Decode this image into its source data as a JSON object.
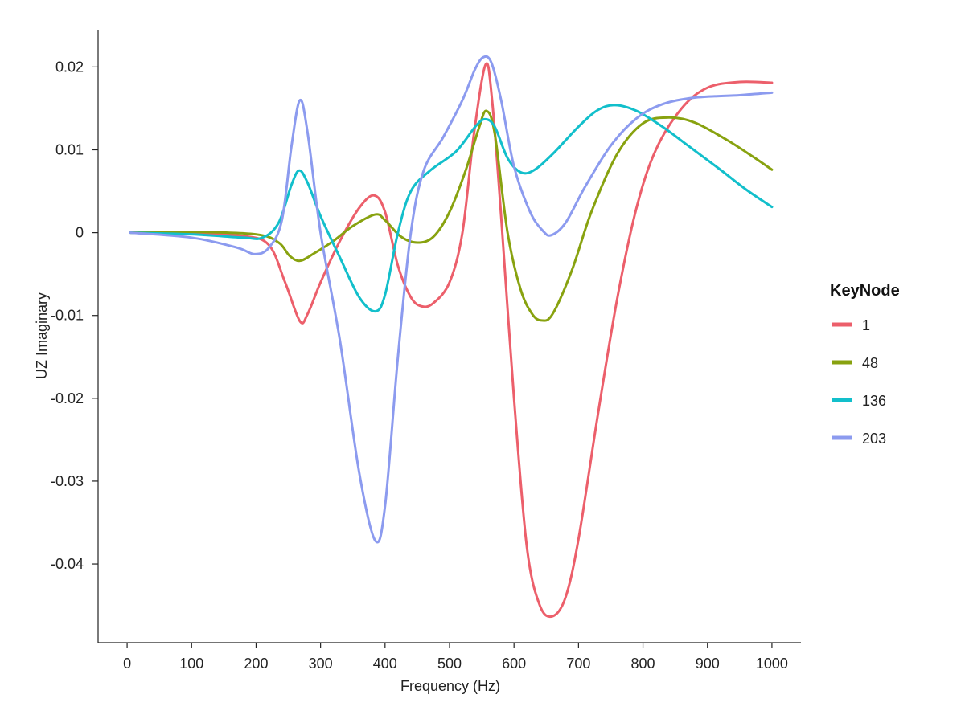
{
  "chart_data": {
    "type": "line",
    "title": "",
    "xlabel": "Frequency (Hz)",
    "ylabel": "UZ Imaginary",
    "xlim": [
      -45,
      1045
    ],
    "ylim": [
      -0.0495,
      0.0245
    ],
    "xticks": [
      0,
      100,
      200,
      300,
      400,
      500,
      600,
      700,
      800,
      900,
      1000
    ],
    "yticks": [
      -0.04,
      -0.03,
      -0.02,
      -0.01,
      0,
      0.01,
      0.02
    ],
    "ytick_labels": [
      "-0.04",
      "-0.03",
      "-0.02",
      "-0.01",
      "0",
      "0.01",
      "0.02"
    ],
    "grid": false,
    "legend": {
      "title": "KeyNode",
      "position": "right"
    },
    "series": [
      {
        "name": "1",
        "color": "#EC5F6B",
        "points": [
          [
            5,
            0
          ],
          [
            100,
            -0.0001
          ],
          [
            180,
            -0.0004
          ],
          [
            220,
            -0.0015
          ],
          [
            245,
            -0.006
          ],
          [
            268,
            -0.0107
          ],
          [
            280,
            -0.0098
          ],
          [
            300,
            -0.006
          ],
          [
            330,
            -0.001
          ],
          [
            360,
            0.003
          ],
          [
            383,
            0.0045
          ],
          [
            400,
            0.0025
          ],
          [
            420,
            -0.004
          ],
          [
            440,
            -0.0078
          ],
          [
            457,
            -0.0089
          ],
          [
            475,
            -0.0085
          ],
          [
            500,
            -0.006
          ],
          [
            520,
            0.0
          ],
          [
            538,
            0.012
          ],
          [
            556,
            0.0203
          ],
          [
            566,
            0.016
          ],
          [
            580,
            0.002
          ],
          [
            600,
            -0.02
          ],
          [
            620,
            -0.038
          ],
          [
            640,
            -0.045
          ],
          [
            660,
            -0.0463
          ],
          [
            680,
            -0.044
          ],
          [
            700,
            -0.037
          ],
          [
            730,
            -0.022
          ],
          [
            760,
            -0.008
          ],
          [
            790,
            0.003
          ],
          [
            820,
            0.01
          ],
          [
            860,
            0.015
          ],
          [
            900,
            0.0175
          ],
          [
            950,
            0.0182
          ],
          [
            1000,
            0.0181
          ]
        ]
      },
      {
        "name": "48",
        "color": "#88A20F",
        "points": [
          [
            5,
            0
          ],
          [
            100,
            0.0001
          ],
          [
            200,
            -0.0002
          ],
          [
            235,
            -0.0012
          ],
          [
            252,
            -0.0028
          ],
          [
            268,
            -0.0034
          ],
          [
            290,
            -0.0025
          ],
          [
            320,
            -0.001
          ],
          [
            350,
            0.0008
          ],
          [
            385,
            0.0022
          ],
          [
            400,
            0.0015
          ],
          [
            425,
            -0.0005
          ],
          [
            450,
            -0.0012
          ],
          [
            475,
            -0.0005
          ],
          [
            500,
            0.0025
          ],
          [
            525,
            0.0075
          ],
          [
            545,
            0.0125
          ],
          [
            557,
            0.0147
          ],
          [
            570,
            0.012
          ],
          [
            590,
            0.0
          ],
          [
            610,
            -0.0068
          ],
          [
            628,
            -0.0098
          ],
          [
            643,
            -0.0106
          ],
          [
            660,
            -0.0098
          ],
          [
            690,
            -0.0045
          ],
          [
            720,
            0.0025
          ],
          [
            760,
            0.0095
          ],
          [
            800,
            0.0132
          ],
          [
            840,
            0.0139
          ],
          [
            880,
            0.0133
          ],
          [
            930,
            0.0112
          ],
          [
            970,
            0.0092
          ],
          [
            1000,
            0.0076
          ]
        ]
      },
      {
        "name": "136",
        "color": "#12BFCB",
        "points": [
          [
            5,
            0
          ],
          [
            100,
            -0.0002
          ],
          [
            180,
            -0.0006
          ],
          [
            210,
            -0.0006
          ],
          [
            235,
            0.0012
          ],
          [
            255,
            0.0058
          ],
          [
            267,
            0.0075
          ],
          [
            280,
            0.006
          ],
          [
            300,
            0.002
          ],
          [
            330,
            -0.003
          ],
          [
            360,
            -0.0078
          ],
          [
            385,
            -0.0095
          ],
          [
            400,
            -0.0075
          ],
          [
            420,
            0.0
          ],
          [
            440,
            0.005
          ],
          [
            470,
            0.0075
          ],
          [
            510,
            0.0098
          ],
          [
            540,
            0.0128
          ],
          [
            555,
            0.0137
          ],
          [
            570,
            0.0128
          ],
          [
            590,
            0.009
          ],
          [
            610,
            0.0073
          ],
          [
            630,
            0.0075
          ],
          [
            660,
            0.0095
          ],
          [
            700,
            0.0128
          ],
          [
            730,
            0.0148
          ],
          [
            757,
            0.0154
          ],
          [
            790,
            0.0147
          ],
          [
            830,
            0.0128
          ],
          [
            870,
            0.0105
          ],
          [
            920,
            0.0076
          ],
          [
            960,
            0.0052
          ],
          [
            1000,
            0.0031
          ]
        ]
      },
      {
        "name": "203",
        "color": "#8C9BEF",
        "points": [
          [
            5,
            0
          ],
          [
            100,
            -0.0006
          ],
          [
            170,
            -0.0018
          ],
          [
            198,
            -0.0026
          ],
          [
            220,
            -0.0018
          ],
          [
            240,
            0.0015
          ],
          [
            255,
            0.0105
          ],
          [
            268,
            0.016
          ],
          [
            280,
            0.012
          ],
          [
            300,
            0.0
          ],
          [
            330,
            -0.013
          ],
          [
            360,
            -0.029
          ],
          [
            385,
            -0.0372
          ],
          [
            400,
            -0.033
          ],
          [
            420,
            -0.015
          ],
          [
            440,
            0.0
          ],
          [
            460,
            0.0075
          ],
          [
            490,
            0.0115
          ],
          [
            520,
            0.016
          ],
          [
            540,
            0.0198
          ],
          [
            553,
            0.0212
          ],
          [
            565,
            0.0205
          ],
          [
            580,
            0.016
          ],
          [
            600,
            0.008
          ],
          [
            625,
            0.0025
          ],
          [
            645,
            0.0002
          ],
          [
            658,
            -0.0003
          ],
          [
            680,
            0.0012
          ],
          [
            710,
            0.0055
          ],
          [
            750,
            0.0105
          ],
          [
            790,
            0.0138
          ],
          [
            830,
            0.0155
          ],
          [
            880,
            0.0163
          ],
          [
            950,
            0.0166
          ],
          [
            1000,
            0.0169
          ]
        ]
      }
    ]
  }
}
